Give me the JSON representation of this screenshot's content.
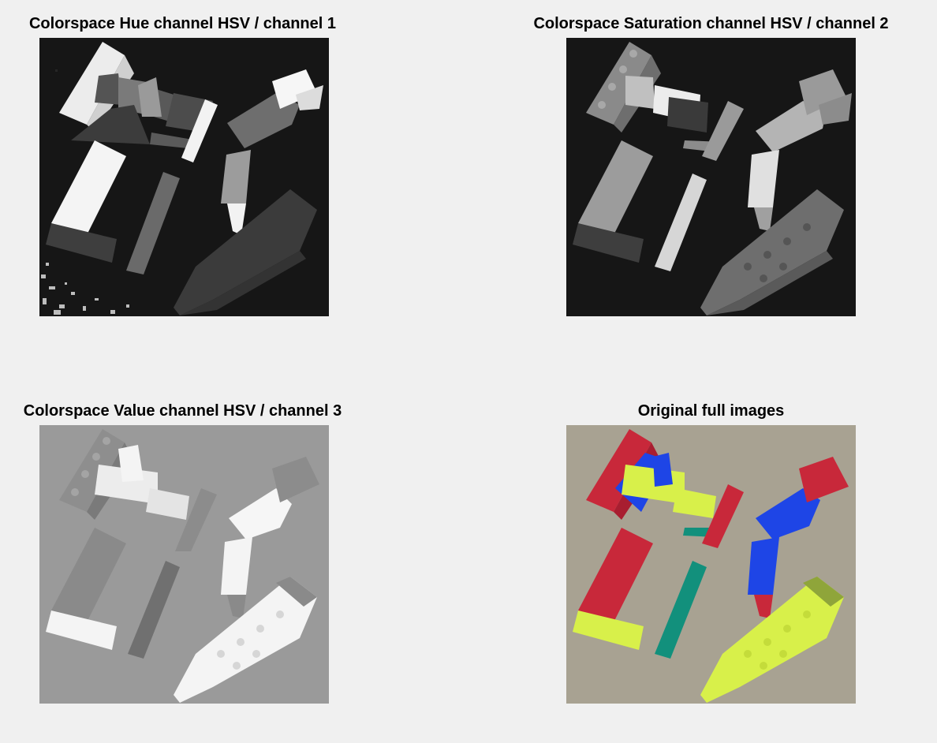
{
  "figure": {
    "panels": [
      {
        "title": "Colorspace Hue channel HSV /  channel 1",
        "image_icon": "hue-channel-grayscale-image"
      },
      {
        "title": "Colorspace Saturation channel HSV /  channel 2",
        "image_icon": "saturation-channel-grayscale-image"
      },
      {
        "title": "Colorspace Value channel HSV /  channel 3",
        "image_icon": "value-channel-grayscale-image"
      },
      {
        "title": "Original full images",
        "image_icon": "original-color-lego-photo"
      }
    ]
  },
  "colors": {
    "figure_background": "#f0f0f0",
    "red_brick": "#c8283a",
    "blue_brick": "#1e45e6",
    "lime_brick": "#d8f04a",
    "teal_brick": "#12907c",
    "table_surface": "#a8a292"
  }
}
